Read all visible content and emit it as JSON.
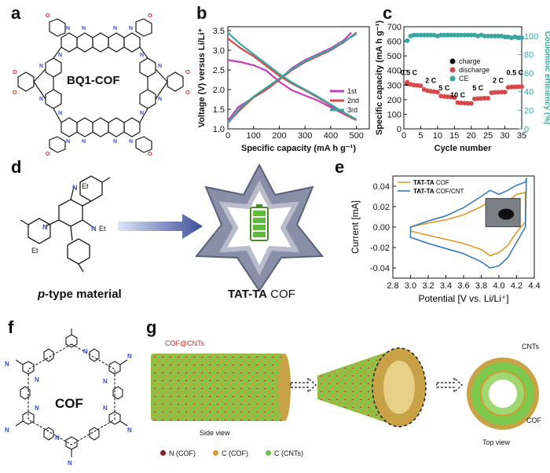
{
  "panels": {
    "a": {
      "letter": "a",
      "label": "BQ1-COF"
    },
    "b": {
      "letter": "b"
    },
    "c": {
      "letter": "c"
    },
    "d": {
      "letter": "d",
      "material_label_italic": "p",
      "material_label_rest": "-type material",
      "product_label_bold": "TAT-TA",
      "product_label_rest": " COF",
      "substituent": "Et"
    },
    "e": {
      "letter": "e"
    },
    "f": {
      "letter": "f",
      "label": "COF",
      "n_label": "N"
    },
    "g": {
      "letter": "g",
      "composite_label": "COF@CNTs",
      "side_view": "Side view",
      "top_view": "Top view",
      "cnt_callout": "CNTs",
      "cof_callout": "COF",
      "legend": [
        {
          "label": "N (COF)",
          "color": "#8b1d1d"
        },
        {
          "label": "C (COF)",
          "color": "#d89a2a"
        },
        {
          "label": "C (CNTs)",
          "color": "#6cc04a"
        }
      ]
    }
  },
  "chart_data": [
    {
      "panel": "b",
      "type": "line",
      "xlabel": "Specific capacity (mA h g⁻¹)",
      "ylabel": "Voltage (V) versus Li/Li⁺",
      "xlim": [
        0,
        550
      ],
      "ylim": [
        1.0,
        3.6
      ],
      "xticks": [
        "0",
        "100",
        "200",
        "300",
        "400",
        "500"
      ],
      "yticks": [
        "1.0",
        "1.5",
        "2.0",
        "2.5",
        "3.0",
        "3.5"
      ],
      "series": [
        {
          "name": "1st",
          "color": "#c040c0",
          "discharge": [
            [
              0,
              2.75
            ],
            [
              50,
              2.7
            ],
            [
              100,
              2.62
            ],
            [
              150,
              2.48
            ],
            [
              200,
              2.2
            ],
            [
              250,
              1.98
            ],
            [
              300,
              1.85
            ],
            [
              350,
              1.72
            ],
            [
              400,
              1.55
            ],
            [
              450,
              1.38
            ],
            [
              490,
              1.25
            ]
          ],
          "charge": [
            [
              0,
              1.2
            ],
            [
              40,
              1.55
            ],
            [
              100,
              1.8
            ],
            [
              150,
              2.0
            ],
            [
              200,
              2.25
            ],
            [
              250,
              2.55
            ],
            [
              300,
              2.75
            ],
            [
              350,
              2.9
            ],
            [
              400,
              3.05
            ],
            [
              450,
              3.25
            ],
            [
              480,
              3.45
            ]
          ]
        },
        {
          "name": "2nd",
          "color": "#d84848",
          "discharge": [
            [
              0,
              3.3
            ],
            [
              50,
              3.05
            ],
            [
              100,
              2.85
            ],
            [
              150,
              2.6
            ],
            [
              200,
              2.35
            ],
            [
              250,
              2.15
            ],
            [
              300,
              1.98
            ],
            [
              350,
              1.8
            ],
            [
              400,
              1.6
            ],
            [
              450,
              1.4
            ],
            [
              500,
              1.22
            ]
          ],
          "charge": [
            [
              0,
              1.15
            ],
            [
              50,
              1.5
            ],
            [
              100,
              1.8
            ],
            [
              150,
              2.0
            ],
            [
              200,
              2.25
            ],
            [
              250,
              2.5
            ],
            [
              300,
              2.7
            ],
            [
              350,
              2.85
            ],
            [
              400,
              3.0
            ],
            [
              450,
              3.2
            ],
            [
              500,
              3.45
            ]
          ]
        },
        {
          "name": "3rd",
          "color": "#3aa6a0",
          "discharge": [
            [
              0,
              3.45
            ],
            [
              50,
              3.15
            ],
            [
              100,
              2.9
            ],
            [
              150,
              2.65
            ],
            [
              200,
              2.4
            ],
            [
              250,
              2.18
            ],
            [
              300,
              2.0
            ],
            [
              350,
              1.82
            ],
            [
              400,
              1.62
            ],
            [
              450,
              1.42
            ],
            [
              500,
              1.24
            ]
          ],
          "charge": [
            [
              0,
              1.15
            ],
            [
              50,
              1.55
            ],
            [
              100,
              1.82
            ],
            [
              150,
              2.05
            ],
            [
              200,
              2.28
            ],
            [
              250,
              2.52
            ],
            [
              300,
              2.72
            ],
            [
              350,
              2.88
            ],
            [
              400,
              3.02
            ],
            [
              450,
              3.22
            ],
            [
              500,
              3.42
            ]
          ]
        }
      ]
    },
    {
      "panel": "c",
      "type": "scatter",
      "xlabel": "Cycle number",
      "ylabel": "Specific capacity (mA h g⁻¹)",
      "y2label": "Coulombic efficiency (%)",
      "xlim": [
        0,
        35
      ],
      "ylim": [
        0,
        700
      ],
      "y2lim": [
        0,
        110
      ],
      "xticks": [
        "0",
        "5",
        "10",
        "15",
        "20",
        "25",
        "30",
        "35"
      ],
      "yticks": [
        "0",
        "100",
        "200",
        "300",
        "400",
        "500",
        "600",
        "700"
      ],
      "y2ticks": [
        "0",
        "20",
        "40",
        "60",
        "80",
        "100"
      ],
      "rate_labels": [
        {
          "text": "0.5 C",
          "x": 1.5,
          "y": 370
        },
        {
          "text": "2 C",
          "x": 8,
          "y": 315
        },
        {
          "text": "5 C",
          "x": 12,
          "y": 265
        },
        {
          "text": "10 C",
          "x": 16,
          "y": 215
        },
        {
          "text": "5 C",
          "x": 22,
          "y": 265
        },
        {
          "text": "2 C",
          "x": 28,
          "y": 315
        },
        {
          "text": "0.5 C",
          "x": 33,
          "y": 370
        }
      ],
      "legend": [
        "charge",
        "discharge",
        "CE"
      ],
      "series": [
        {
          "name": "charge",
          "color": "#111111",
          "x": [
            1
          ],
          "y": [
            310
          ]
        },
        {
          "name": "discharge",
          "color": "#d84848",
          "x": [
            1,
            2,
            3,
            4,
            5,
            6,
            7,
            8,
            9,
            10,
            11,
            12,
            13,
            14,
            15,
            16,
            17,
            18,
            19,
            20,
            21,
            22,
            23,
            24,
            25,
            26,
            27,
            28,
            29,
            30,
            31,
            32,
            33,
            34,
            35
          ],
          "y": [
            320,
            305,
            300,
            298,
            295,
            270,
            262,
            258,
            255,
            252,
            225,
            222,
            220,
            218,
            215,
            180,
            178,
            176,
            175,
            174,
            205,
            207,
            208,
            210,
            210,
            248,
            250,
            251,
            252,
            252,
            285,
            287,
            288,
            289,
            290
          ]
        },
        {
          "name": "CE",
          "color": "#3aa6a0",
          "x": [
            1,
            2,
            3,
            4,
            5,
            6,
            7,
            8,
            9,
            10,
            11,
            12,
            13,
            14,
            15,
            16,
            17,
            18,
            19,
            20,
            21,
            22,
            23,
            24,
            25,
            26,
            27,
            28,
            29,
            30,
            31,
            32,
            33,
            34,
            35
          ],
          "y2": [
            95,
            100,
            101,
            101,
            101,
            101,
            101,
            101,
            101,
            100,
            101,
            101,
            101,
            101,
            101,
            101,
            101,
            101,
            101,
            101,
            101,
            100,
            101,
            100,
            100,
            100,
            100,
            100,
            100,
            99,
            99,
            98,
            99,
            98,
            98
          ]
        }
      ]
    },
    {
      "panel": "e",
      "type": "line",
      "xlabel": "Potential [V vs. Li/Li⁺]",
      "ylabel": "Current [mA]",
      "xlim": [
        2.8,
        4.4
      ],
      "ylim": [
        -0.05,
        0.05
      ],
      "xticks": [
        "2.8",
        "3.0",
        "3.2",
        "3.4",
        "3.6",
        "3.8",
        "4.0",
        "4.2",
        "4.4"
      ],
      "yticks": [
        "-0.04",
        "-0.02",
        "0.00",
        "0.02",
        "0.04"
      ],
      "legend": [
        {
          "bold": "TAT-TA",
          "rest": " COF",
          "color": "#e09a2a"
        },
        {
          "bold": "TAT-TA",
          "rest": " COF/CNT",
          "color": "#3a7db8"
        }
      ],
      "series": [
        {
          "name": "TAT-TA COF",
          "color": "#e09a2a",
          "loop": [
            [
              3.0,
              0.0
            ],
            [
              3.2,
              0.004
            ],
            [
              3.4,
              0.007
            ],
            [
              3.6,
              0.012
            ],
            [
              3.8,
              0.02
            ],
            [
              3.9,
              0.026
            ],
            [
              4.0,
              0.022
            ],
            [
              4.1,
              0.025
            ],
            [
              4.2,
              0.032
            ],
            [
              4.3,
              0.034
            ],
            [
              4.3,
              0.005
            ],
            [
              4.2,
              -0.005
            ],
            [
              4.1,
              -0.018
            ],
            [
              4.0,
              -0.025
            ],
            [
              3.9,
              -0.028
            ],
            [
              3.8,
              -0.022
            ],
            [
              3.6,
              -0.016
            ],
            [
              3.4,
              -0.012
            ],
            [
              3.2,
              -0.008
            ],
            [
              3.0,
              -0.004
            ]
          ]
        },
        {
          "name": "TAT-TA COF/CNT",
          "color": "#3a7db8",
          "loop": [
            [
              3.0,
              0.0
            ],
            [
              3.2,
              0.006
            ],
            [
              3.4,
              0.011
            ],
            [
              3.6,
              0.019
            ],
            [
              3.8,
              0.03
            ],
            [
              3.9,
              0.036
            ],
            [
              4.0,
              0.032
            ],
            [
              4.1,
              0.036
            ],
            [
              4.2,
              0.041
            ],
            [
              4.3,
              0.044
            ],
            [
              4.31,
              0.048
            ],
            [
              4.3,
              0.0
            ],
            [
              4.2,
              -0.015
            ],
            [
              4.1,
              -0.03
            ],
            [
              4.0,
              -0.038
            ],
            [
              3.9,
              -0.04
            ],
            [
              3.8,
              -0.034
            ],
            [
              3.6,
              -0.026
            ],
            [
              3.4,
              -0.021
            ],
            [
              3.2,
              -0.016
            ],
            [
              3.0,
              -0.01
            ]
          ]
        }
      ]
    }
  ]
}
